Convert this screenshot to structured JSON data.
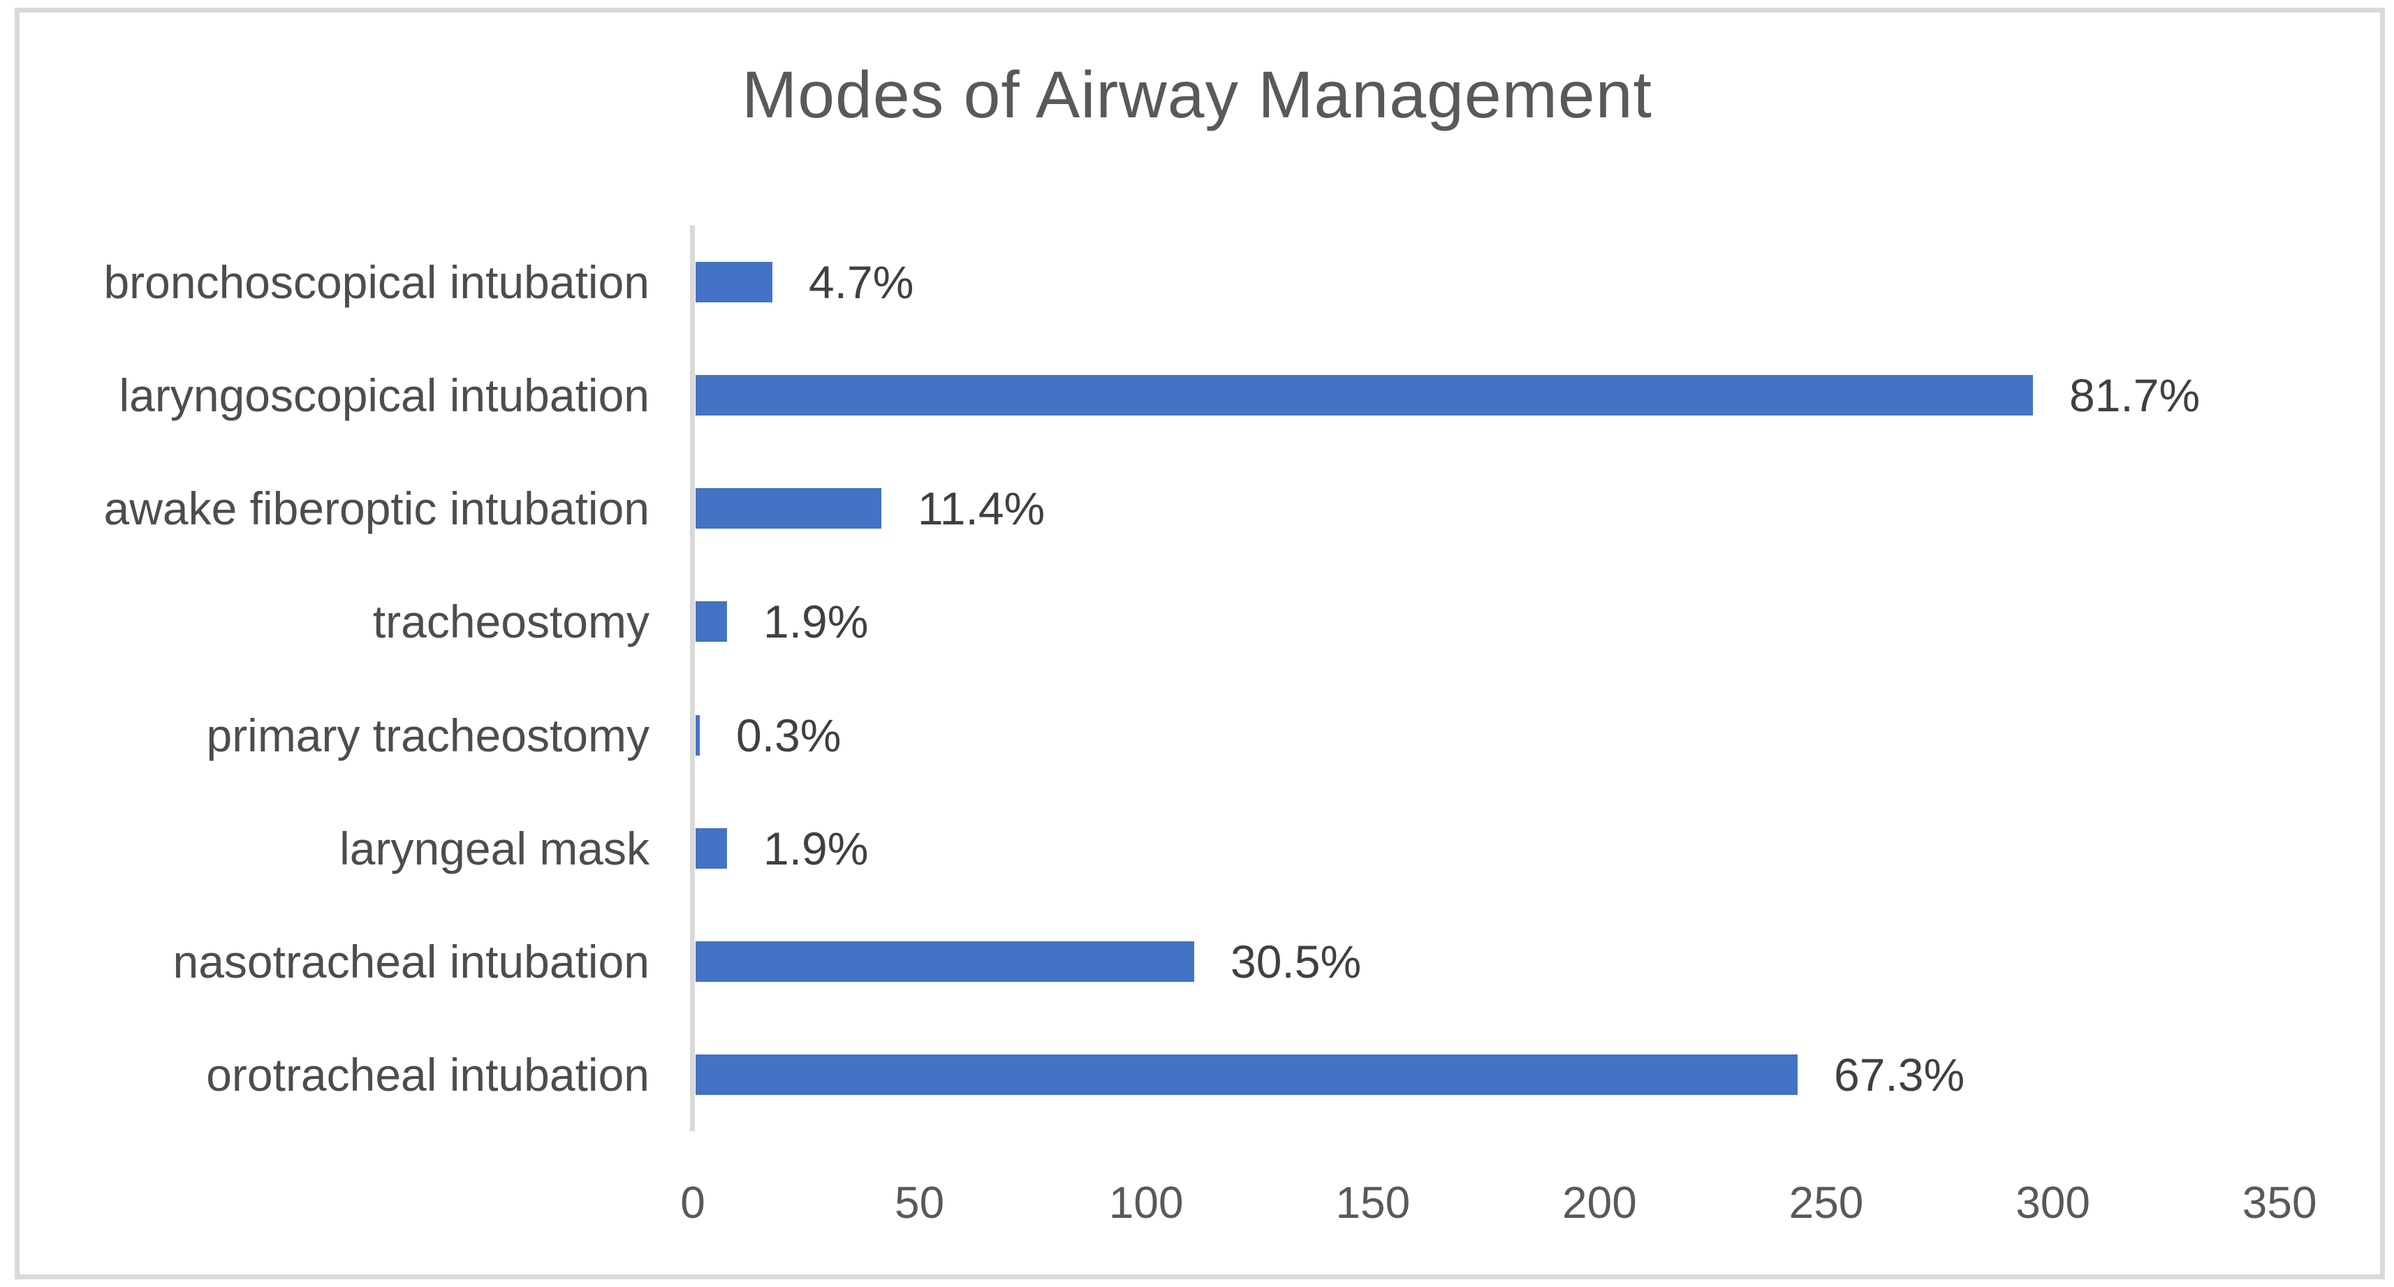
{
  "chart_data": {
    "type": "bar",
    "orientation": "horizontal",
    "title": "Modes of Airway Management",
    "categories": [
      "bronchoscopical intubation",
      "laryngoscopical intubation",
      "awake fiberoptic intubation",
      "tracheostomy",
      "primary tracheostomy",
      "laryngeal mask",
      "nasotracheal intubation",
      "orotracheal intubation"
    ],
    "values": [
      17,
      295,
      41,
      7,
      1,
      7,
      110,
      243
    ],
    "data_labels": [
      "4.7%",
      "81.7%",
      "11.4%",
      "1.9%",
      "0.3%",
      "1.9%",
      "30.5%",
      "67.3%"
    ],
    "xlabel": "",
    "ylabel": "",
    "xlim": [
      0,
      350
    ],
    "x_ticks": [
      0,
      50,
      100,
      150,
      200,
      250,
      300,
      350
    ],
    "grid": false,
    "legend": "none",
    "colors": {
      "bar": "#4472C4",
      "title_text": "#595959",
      "category_text": "#4d4d4d",
      "data_label_text": "#404040",
      "tick_text": "#595959",
      "axis_line": "#D9D9D9",
      "border": "#D9D9D9"
    }
  }
}
